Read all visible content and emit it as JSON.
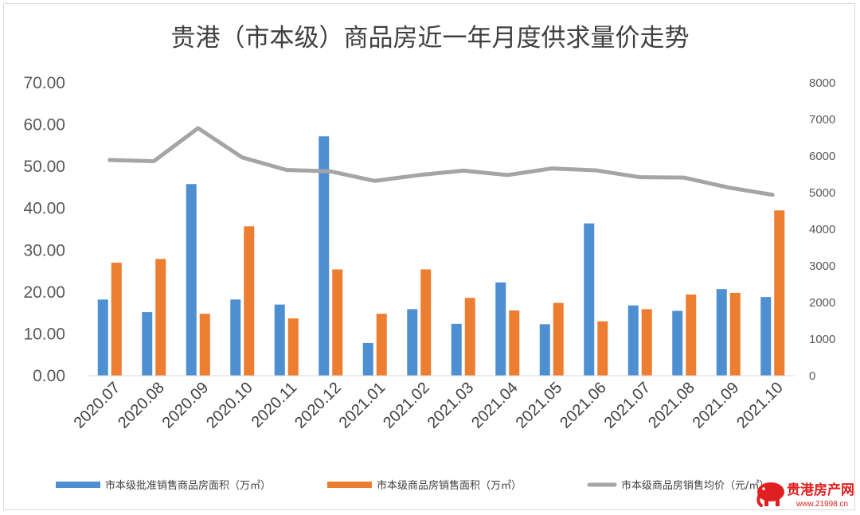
{
  "chart_data": {
    "type": "bar",
    "title": "贵港（市本级）商品房近一年月度供求量价走势",
    "categories": [
      "2020.07",
      "2020.08",
      "2020.09",
      "2020.10",
      "2020.11",
      "2020.12",
      "2021.01",
      "2021.02",
      "2021.03",
      "2021.04",
      "2021.05",
      "2021.06",
      "2021.07",
      "2021.08",
      "2021.09",
      "2021.10"
    ],
    "y_left": {
      "range": [
        0,
        70
      ],
      "ticks": [
        "0.00",
        "10.00",
        "20.00",
        "30.00",
        "40.00",
        "50.00",
        "60.00",
        "70.00"
      ]
    },
    "y_right": {
      "range": [
        0,
        8000
      ],
      "ticks": [
        "0",
        "1000",
        "2000",
        "3000",
        "4000",
        "5000",
        "6000",
        "7000",
        "8000"
      ]
    },
    "series": [
      {
        "name": "市本级批准销售商品房面积（万㎡）",
        "type": "bar",
        "axis": "left",
        "color": "#4e8fd2",
        "values": [
          18.2,
          15.2,
          45.8,
          18.2,
          17.0,
          57.2,
          7.8,
          15.9,
          12.4,
          22.3,
          12.3,
          36.4,
          16.8,
          15.5,
          20.7,
          18.8
        ]
      },
      {
        "name": "市本级商品房销售面积（万㎡）",
        "type": "bar",
        "axis": "left",
        "color": "#ed7d31",
        "values": [
          27.0,
          27.9,
          14.8,
          35.7,
          13.7,
          25.4,
          14.8,
          25.4,
          18.6,
          15.6,
          17.4,
          13.0,
          15.9,
          19.4,
          19.8,
          39.5
        ]
      },
      {
        "name": "市本级商品房销售均价（元/㎡）",
        "type": "line",
        "axis": "right",
        "color": "#a5a5a5",
        "values": [
          5890,
          5860,
          6760,
          5960,
          5620,
          5580,
          5320,
          5480,
          5600,
          5480,
          5660,
          5610,
          5420,
          5410,
          5140,
          4940
        ]
      }
    ],
    "legend_position": "bottom",
    "grid": false
  },
  "watermark": {
    "text": "贵港房产网",
    "url": "www.21998.cn",
    "color": "#e02020"
  }
}
